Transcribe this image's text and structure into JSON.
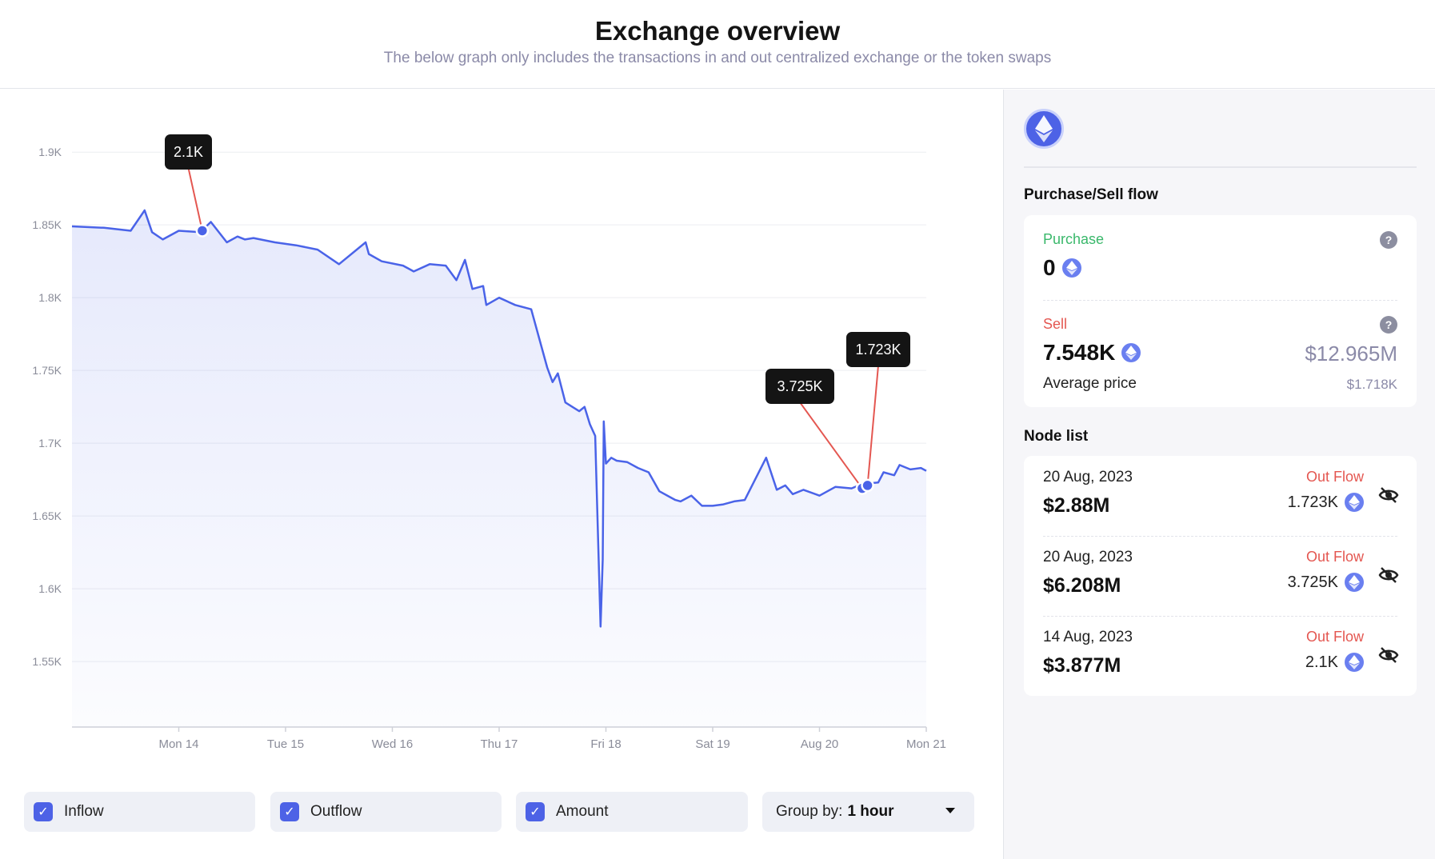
{
  "header": {
    "title": "Exchange overview",
    "subtitle": "The below graph only includes the transactions in and out centralized exchange or the token swaps"
  },
  "chart_data": {
    "type": "area",
    "x_ticks": [
      "Mon 14",
      "Tue 15",
      "Wed 16",
      "Thu 17",
      "Fri 18",
      "Sat 19",
      "Aug 20",
      "Mon 21"
    ],
    "y_ticks": [
      "1.9K",
      "1.85K",
      "1.8K",
      "1.75K",
      "1.7K",
      "1.65K",
      "1.6K",
      "1.55K"
    ],
    "ylim": [
      1505,
      1910
    ],
    "x_range_days": [
      13.0,
      21.0
    ],
    "series": [
      {
        "color": "#4a63e8",
        "x": [
          13.0,
          13.3,
          13.55,
          13.68,
          13.75,
          13.85,
          14.0,
          14.2,
          14.3,
          14.45,
          14.55,
          14.62,
          14.7,
          14.9,
          15.1,
          15.3,
          15.5,
          15.75,
          15.78,
          15.9,
          16.1,
          16.2,
          16.35,
          16.5,
          16.6,
          16.68,
          16.75,
          16.85,
          16.88,
          17.0,
          17.15,
          17.3,
          17.45,
          17.5,
          17.55,
          17.62,
          17.75,
          17.8,
          17.85,
          17.9,
          17.95,
          17.97,
          17.98,
          18.0,
          18.05,
          18.1,
          18.2,
          18.3,
          18.4,
          18.5,
          18.6,
          18.65,
          18.7,
          18.8,
          18.9,
          19.0,
          19.1,
          19.2,
          19.3,
          19.5,
          19.6,
          19.68,
          19.75,
          19.85,
          20.0,
          20.15,
          20.3,
          20.4,
          20.55,
          20.6,
          20.7,
          20.75,
          20.85,
          20.95,
          21.0
        ],
        "y": [
          1849,
          1848,
          1846,
          1860,
          1845,
          1840,
          1846,
          1845,
          1852,
          1838,
          1842,
          1840,
          1841,
          1838,
          1836,
          1833,
          1823,
          1838,
          1830,
          1825,
          1822,
          1818,
          1823,
          1822,
          1812,
          1826,
          1806,
          1808,
          1795,
          1800,
          1795,
          1792,
          1752,
          1742,
          1748,
          1728,
          1722,
          1725,
          1713,
          1705,
          1574,
          1620,
          1715,
          1686,
          1690,
          1688,
          1687,
          1683,
          1680,
          1667,
          1663,
          1661,
          1660,
          1664,
          1657,
          1657,
          1658,
          1660,
          1661,
          1690,
          1668,
          1671,
          1665,
          1668,
          1664,
          1670,
          1669,
          1672,
          1673,
          1680,
          1678,
          1685,
          1682,
          1683,
          1681
        ]
      }
    ],
    "annotations": [
      {
        "label": "2.1K",
        "x": 14.22,
        "y": 1846
      },
      {
        "label": "3.725K",
        "x": 20.4,
        "y": 1669
      },
      {
        "label": "1.723K",
        "x": 20.45,
        "y": 1671
      }
    ]
  },
  "controls": {
    "inflow": "Inflow",
    "outflow": "Outflow",
    "amount": "Amount",
    "group_label": "Group by:",
    "group_value": "1 hour"
  },
  "side": {
    "token_icon": "ethereum-icon",
    "flow_title": "Purchase/Sell flow",
    "purchase_label": "Purchase",
    "purchase_value": "0",
    "sell_label": "Sell",
    "sell_value": "7.548K",
    "sell_usd": "$12.965M",
    "avg_label": "Average price",
    "avg_value": "$1.718K",
    "node_title": "Node list",
    "nodes": [
      {
        "date": "20 Aug, 2023",
        "amount": "$2.88M",
        "flow": "Out Flow",
        "qty": "1.723K"
      },
      {
        "date": "20 Aug, 2023",
        "amount": "$6.208M",
        "flow": "Out Flow",
        "qty": "3.725K"
      },
      {
        "date": "14 Aug, 2023",
        "amount": "$3.877M",
        "flow": "Out Flow",
        "qty": "2.1K"
      }
    ]
  },
  "colors": {
    "accent": "#4d62e6",
    "line": "#4a63e8",
    "annotation_line": "#e45751",
    "purchase": "#3ab86b",
    "sell": "#e45751"
  }
}
